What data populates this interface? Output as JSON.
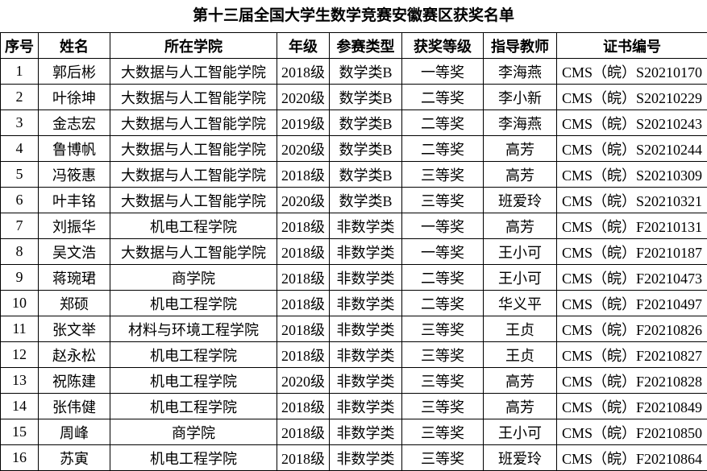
{
  "title": "第十三届全国大学生数学竞赛安徽赛区获奖名单",
  "table": {
    "header": [
      "序号",
      "姓名",
      "所在学院",
      "年级",
      "参赛类型",
      "获奖等级",
      "指导教师",
      "证书编号"
    ],
    "rows": [
      [
        "1",
        "郭后彬",
        "大数据与人工智能学院",
        "2018级",
        "数学类B",
        "一等奖",
        "李海燕",
        "CMS（皖）S20210170"
      ],
      [
        "2",
        "叶徐坤",
        "大数据与人工智能学院",
        "2020级",
        "数学类B",
        "二等奖",
        "李小新",
        "CMS（皖）S20210229"
      ],
      [
        "3",
        "金志宏",
        "大数据与人工智能学院",
        "2019级",
        "数学类B",
        "二等奖",
        "李海燕",
        "CMS（皖）S20210243"
      ],
      [
        "4",
        "鲁博帆",
        "大数据与人工智能学院",
        "2020级",
        "数学类B",
        "二等奖",
        "高芳",
        "CMS（皖）S20210244"
      ],
      [
        "5",
        "冯筱惠",
        "大数据与人工智能学院",
        "2018级",
        "数学类B",
        "三等奖",
        "高芳",
        "CMS（皖）S20210309"
      ],
      [
        "6",
        "叶丰铭",
        "大数据与人工智能学院",
        "2020级",
        "数学类B",
        "三等奖",
        "班爱玲",
        "CMS（皖）S20210321"
      ],
      [
        "7",
        "刘振华",
        "机电工程学院",
        "2018级",
        "非数学类",
        "一等奖",
        "高芳",
        "CMS（皖）F20210131"
      ],
      [
        "8",
        "吴文浩",
        "大数据与人工智能学院",
        "2018级",
        "非数学类",
        "一等奖",
        "王小可",
        "CMS（皖）F20210187"
      ],
      [
        "9",
        "蒋琬珺",
        "商学院",
        "2018级",
        "非数学类",
        "二等奖",
        "王小可",
        "CMS（皖）F20210473"
      ],
      [
        "10",
        "郑硕",
        "机电工程学院",
        "2018级",
        "非数学类",
        "二等奖",
        "华义平",
        "CMS（皖）F20210497"
      ],
      [
        "11",
        "张文举",
        "材料与环境工程学院",
        "2018级",
        "非数学类",
        "三等奖",
        "王贞",
        "CMS（皖）F20210826"
      ],
      [
        "12",
        "赵永松",
        "机电工程学院",
        "2018级",
        "非数学类",
        "三等奖",
        "王贞",
        "CMS（皖）F20210827"
      ],
      [
        "13",
        "祝陈建",
        "机电工程学院",
        "2020级",
        "非数学类",
        "三等奖",
        "高芳",
        "CMS（皖）F20210828"
      ],
      [
        "14",
        "张伟健",
        "机电工程学院",
        "2018级",
        "非数学类",
        "三等奖",
        "高芳",
        "CMS（皖）F20210849"
      ],
      [
        "15",
        "周峰",
        "商学院",
        "2018级",
        "非数学类",
        "三等奖",
        "王小可",
        "CMS（皖）F20210850"
      ],
      [
        "16",
        "苏寅",
        "机电工程学院",
        "2018级",
        "非数学类",
        "三等奖",
        "班爱玲",
        "CMS（皖）F20210864"
      ]
    ]
  }
}
